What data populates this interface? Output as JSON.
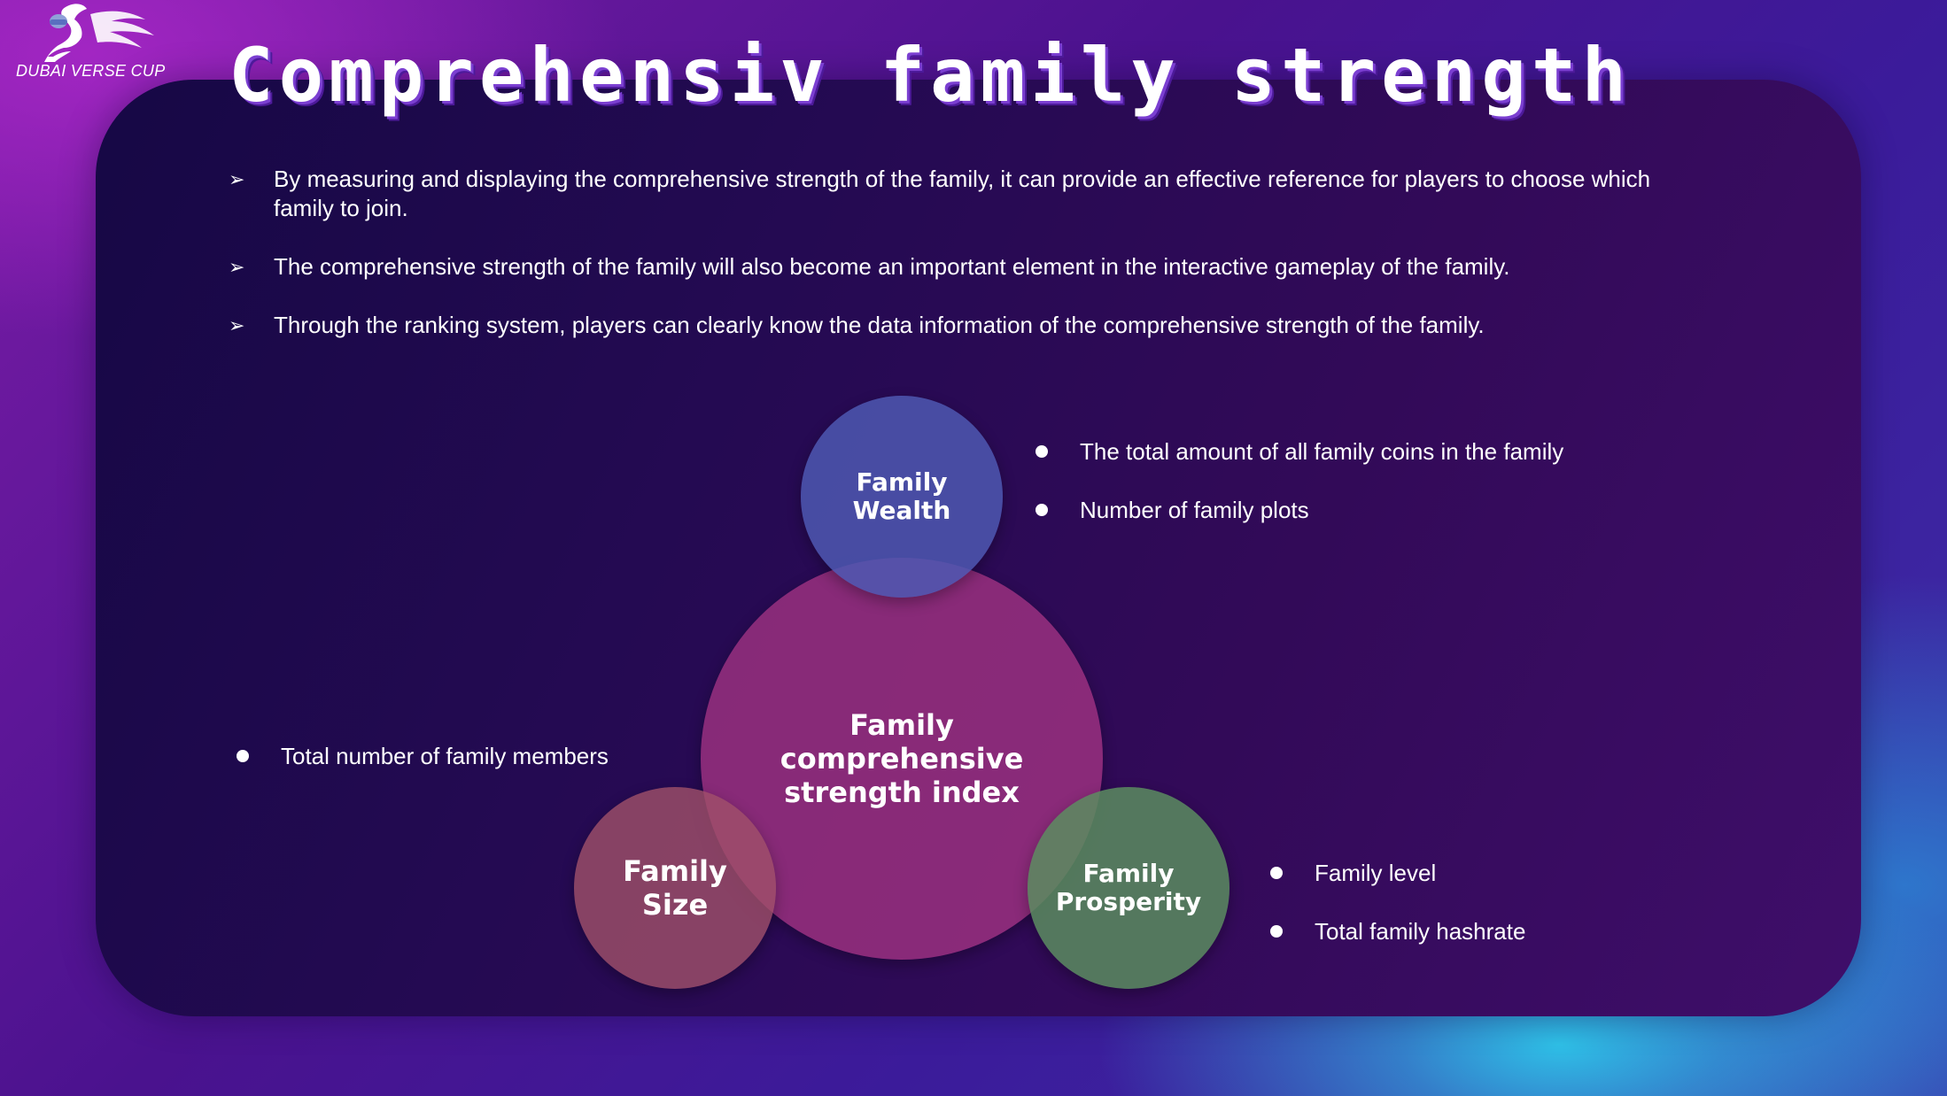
{
  "logo": {
    "text": "DUBAI VERSE CUP",
    "icon": "horse-rider-icon"
  },
  "title": "Comprehensiv family strength",
  "bullets": [
    "By measuring and displaying the comprehensive strength of the family, it can provide an effective reference for players to choose which family to join.",
    "The comprehensive strength of the family will also become an important element in the interactive gameplay of the family.",
    "Through the ranking system, players can clearly know the data information of the comprehensive strength of the family."
  ],
  "diagram": {
    "center": [
      "Family",
      "comprehensive",
      "strength index"
    ],
    "wealth": {
      "label": [
        "Family",
        "Wealth"
      ],
      "items": [
        "The total amount of all family coins in the family",
        "Number of family plots"
      ]
    },
    "size": {
      "label": [
        "Family",
        "Size"
      ],
      "items": [
        "Total number of family members"
      ]
    },
    "prosperity": {
      "label": [
        "Family",
        "Prosperity"
      ],
      "items": [
        "Family level",
        "Total family hashrate"
      ]
    }
  },
  "colors": {
    "wealth": "#4e58b2",
    "center": "#ad3787",
    "size": "#a05069",
    "prosperity": "#5a8c5f",
    "accent": "#2ec8eb"
  }
}
